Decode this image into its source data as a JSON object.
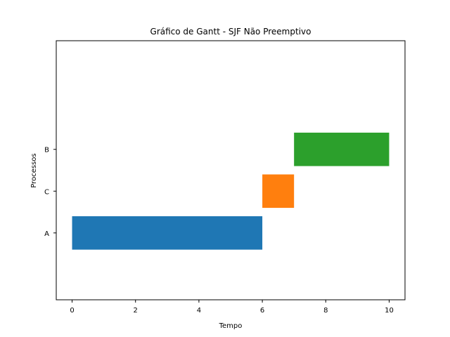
{
  "chart_data": {
    "type": "bar",
    "orientation": "horizontal",
    "title": "Gráfico de Gantt - SJF Não Preemptivo",
    "xlabel": "Tempo",
    "ylabel": "Processos",
    "xlim": [
      -0.5,
      10.5
    ],
    "ylim": [
      -0.6,
      5.6
    ],
    "xticks": [
      0,
      2,
      4,
      6,
      8,
      10
    ],
    "grid": false,
    "categories": [
      "A",
      "C",
      "B"
    ],
    "bars": [
      {
        "process": "A",
        "row": 1,
        "start": 0,
        "end": 6,
        "color": "#1f77b4"
      },
      {
        "process": "C",
        "row": 2,
        "start": 6,
        "end": 7,
        "color": "#ff7f0e"
      },
      {
        "process": "B",
        "row": 3,
        "start": 7,
        "end": 10,
        "color": "#2ca02c"
      }
    ]
  }
}
